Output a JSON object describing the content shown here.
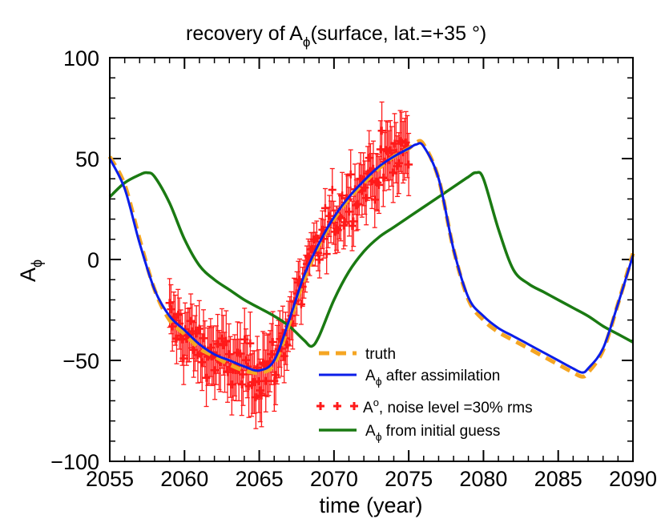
{
  "chart_data": {
    "type": "line",
    "title": "recovery of A",
    "title_sub": "ϕ",
    "title_suffix": "(surface, lat.=+35  °)",
    "xlabel": "time (year)",
    "ylabel": "A",
    "ylabel_sub": "ϕ",
    "xlim": [
      2055,
      2090
    ],
    "ylim": [
      -100,
      100
    ],
    "xticks": [
      2055,
      2060,
      2065,
      2070,
      2075,
      2080,
      2085,
      2090
    ],
    "xtick_labels": [
      "2055",
      "2060",
      "2065",
      "2070",
      "2075",
      "2080",
      "2085",
      "2090"
    ],
    "yticks": [
      -100,
      -50,
      0,
      50,
      100
    ],
    "ytick_labels": [
      "−100",
      "−50",
      "0",
      "50",
      "100"
    ],
    "legend_position": "bottom-center",
    "colors": {
      "truth": "#f5a623",
      "assimilation": "#0b1ee8",
      "observations": "#ff1a1a",
      "initial_guess": "#1a7a12",
      "axis": "#000000"
    },
    "series": [
      {
        "name": "truth",
        "legend": {
          "main": "truth"
        },
        "style": "dashed",
        "x": [
          2055,
          2056,
          2057,
          2058,
          2059,
          2060,
          2061,
          2062,
          2063,
          2064,
          2065,
          2066,
          2067,
          2068,
          2069,
          2070,
          2071,
          2072,
          2073,
          2074,
          2075,
          2075.5,
          2076,
          2077,
          2078,
          2079,
          2080,
          2081,
          2082,
          2083,
          2084,
          2085,
          2086,
          2086.6,
          2087,
          2088,
          2089,
          2090
        ],
        "y": [
          51,
          37,
          10,
          -15,
          -30,
          -37,
          -44,
          -48,
          -52,
          -55,
          -56,
          -52,
          -32,
          -10,
          7,
          20,
          30,
          38,
          45,
          51,
          55,
          58,
          57,
          40,
          5,
          -20,
          -30,
          -36,
          -40,
          -44,
          -48,
          -52,
          -56,
          -58,
          -56,
          -45,
          -22,
          3
        ]
      },
      {
        "name": "assimilation",
        "legend": {
          "main": "A",
          "sub": "ϕ",
          "rest": " after assimilation"
        },
        "style": "solid",
        "x": [
          2055,
          2056,
          2057,
          2058,
          2059,
          2060,
          2061,
          2062,
          2063,
          2064,
          2065,
          2066,
          2067,
          2068,
          2069,
          2070,
          2071,
          2072,
          2073,
          2074,
          2075,
          2075.5,
          2076,
          2077,
          2078,
          2079,
          2080,
          2081,
          2082,
          2083,
          2084,
          2085,
          2086,
          2086.6,
          2087,
          2088,
          2089,
          2090
        ],
        "y": [
          50,
          35,
          8,
          -15,
          -28,
          -35,
          -42,
          -47,
          -50,
          -53,
          -55,
          -50,
          -30,
          -8,
          8,
          21,
          31,
          39,
          46,
          51,
          55,
          57,
          56,
          40,
          5,
          -19,
          -28,
          -34,
          -38,
          -42,
          -46,
          -50,
          -54,
          -56,
          -54,
          -44,
          -22,
          2
        ]
      },
      {
        "name": "initial_guess",
        "legend": {
          "main": "A",
          "sub": "ϕ",
          "rest": " from initial guess"
        },
        "style": "solid",
        "x": [
          2055,
          2056,
          2057,
          2057.5,
          2058,
          2059,
          2060,
          2061,
          2062,
          2063,
          2064,
          2065,
          2066,
          2067,
          2068,
          2068.5,
          2069,
          2070,
          2071,
          2072,
          2073,
          2074,
          2075,
          2076,
          2077,
          2078,
          2079,
          2079.5,
          2080,
          2081,
          2082,
          2083,
          2084,
          2085,
          2086,
          2087,
          2088,
          2089,
          2090
        ],
        "y": [
          31,
          38,
          42,
          43,
          41,
          28,
          10,
          -3,
          -10,
          -15,
          -20,
          -24,
          -28,
          -33,
          -40,
          -43,
          -38,
          -20,
          -6,
          4,
          11,
          16,
          21,
          26,
          31,
          36,
          41,
          43,
          40,
          15,
          -5,
          -12,
          -16,
          -20,
          -24,
          -28,
          -33,
          -37,
          -41
        ]
      }
    ],
    "observations": {
      "name": "observations",
      "legend": {
        "main": "A",
        "sup": "o",
        "rest": ", noise level =30% rms"
      },
      "x_range": [
        2059,
        2075
      ],
      "count": 170,
      "noise_fraction": 0.3
    }
  }
}
